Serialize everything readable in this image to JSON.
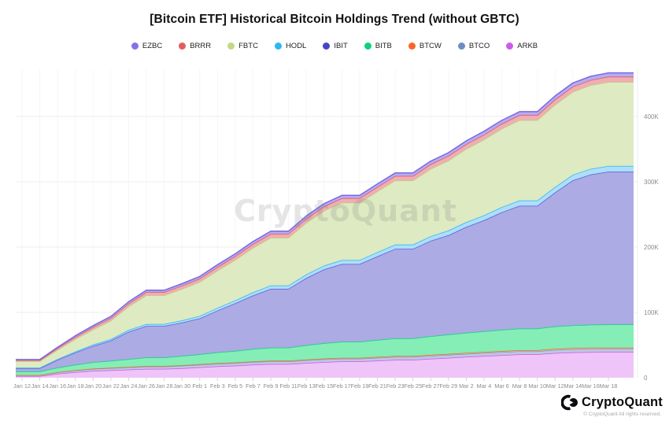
{
  "header": {
    "title": "[Bitcoin ETF] Historical Bitcoin Holdings Trend (without GBTC)"
  },
  "watermark": "CryptoQuant",
  "footer": {
    "brand": "CryptoQuant",
    "copyright": "© CryptoQuant All rights reserved.",
    "logo_icon": "cryptoquant-pacman-logo",
    "logo_color": "#0c0c10"
  },
  "chart_data": {
    "type": "area",
    "stacked": true,
    "title": "[Bitcoin ETF] Historical Bitcoin Holdings Trend (without GBTC)",
    "yunit": "BTC (thousands)",
    "ylim": [
      0,
      470
    ],
    "grid": "horizontal",
    "legend_position": "top",
    "yaxis_side": "right",
    "yticks": [
      {
        "value": 0,
        "label": "0"
      },
      {
        "value": 100,
        "label": "100K"
      },
      {
        "value": 200,
        "label": "200K"
      },
      {
        "value": 300,
        "label": "300K"
      },
      {
        "value": 400,
        "label": "400K"
      }
    ],
    "x_labels": [
      "Jan 12",
      "Jan 14",
      "Jan 16",
      "Jan 18",
      "Jan 20",
      "Jan 22",
      "Jan 24",
      "Jan 26",
      "Jan 28",
      "Jan 30",
      "Feb 1",
      "Feb 3",
      "Feb 5",
      "Feb 7",
      "Feb 9",
      "Feb 11",
      "Feb 13",
      "Feb 15",
      "Feb 17",
      "Feb 19",
      "Feb 21",
      "Feb 23",
      "Feb 25",
      "Feb 27",
      "Feb 29",
      "Mar 2",
      "Mar 4",
      "Mar 6",
      "Mar 8",
      "Mar 10",
      "Mar 12",
      "Mar 14",
      "Mar 16",
      "Mar 18"
    ],
    "legend": [
      {
        "label": "EZBC",
        "color": "#8374e6"
      },
      {
        "label": "BRRR",
        "color": "#e25d60"
      },
      {
        "label": "FBTC",
        "color": "#c3d985"
      },
      {
        "label": "HODL",
        "color": "#2fb5f5"
      },
      {
        "label": "IBIT",
        "color": "#4544c8"
      },
      {
        "label": "BITB",
        "color": "#10ce7e"
      },
      {
        "label": "BTCW",
        "color": "#fa6428"
      },
      {
        "label": "BTCO",
        "color": "#6d8cc3"
      },
      {
        "label": "ARKB",
        "color": "#cb5ce8"
      }
    ],
    "stack_order_note": "series listed bottom to top of the stack; values in thousands of BTC",
    "series": [
      {
        "name": "ARKB",
        "line": "#cb5ce8",
        "fill": "#eec2f8",
        "values": [
          2.5,
          2.5,
          6.0,
          8.5,
          10.5,
          11.5,
          12.5,
          13.5,
          13.5,
          14.5,
          16.0,
          17.5,
          18.5,
          20.0,
          21.0,
          21.0,
          22.5,
          24.0,
          25.0,
          25.0,
          26.2,
          27.4,
          27.4,
          29.0,
          30.4,
          32.0,
          33.2,
          34.6,
          35.8,
          35.8,
          37.8,
          38.8,
          39.3,
          39.5
        ]
      },
      {
        "name": "BTCO",
        "line": "#8098c8",
        "fill": "#bcc6e2",
        "values": [
          1.5,
          1.5,
          2.3,
          2.8,
          3.1,
          3.3,
          3.5,
          3.7,
          3.7,
          3.8,
          3.9,
          4.0,
          4.0,
          4.1,
          4.1,
          4.1,
          4.2,
          4.3,
          4.3,
          4.3,
          4.4,
          4.5,
          4.5,
          4.6,
          4.6,
          4.6,
          4.7,
          4.7,
          4.7,
          4.7,
          4.8,
          4.8,
          4.8,
          4.8
        ]
      },
      {
        "name": "BTCW",
        "line": "#e8742f",
        "fill": "#f3c4a4",
        "values": [
          0.1,
          0.1,
          0.2,
          0.3,
          0.4,
          0.5,
          0.6,
          0.7,
          0.7,
          0.8,
          0.8,
          0.9,
          0.9,
          1.0,
          1.0,
          1.0,
          1.1,
          1.1,
          1.2,
          1.2,
          1.3,
          1.3,
          1.3,
          1.4,
          1.5,
          1.5,
          1.6,
          1.6,
          1.7,
          1.7,
          1.8,
          1.8,
          1.9,
          1.9
        ]
      },
      {
        "name": "BITB",
        "line": "#16d087",
        "fill": "#7fedb3",
        "values": [
          5.5,
          5.5,
          7.0,
          8.3,
          9.7,
          10.6,
          11.8,
          13.2,
          13.2,
          14.3,
          15.2,
          16.5,
          17.6,
          18.9,
          20.1,
          20.1,
          21.9,
          23.5,
          24.6,
          24.6,
          25.9,
          27.1,
          27.1,
          28.6,
          29.7,
          30.7,
          31.6,
          32.5,
          33.1,
          33.1,
          34.3,
          34.9,
          35.2,
          35.4
        ]
      },
      {
        "name": "IBIT",
        "line": "#5f5fd8",
        "fill": "#a9a8e2",
        "values": [
          5.0,
          5.0,
          12.0,
          18.5,
          25.0,
          31.0,
          42.0,
          48.0,
          48.0,
          51.0,
          55.0,
          64.0,
          73.0,
          82.0,
          90.0,
          90.0,
          103.0,
          113.0,
          119.0,
          119.0,
          128.0,
          137.0,
          137.0,
          146.0,
          152.0,
          162.0,
          170.0,
          180.0,
          188.0,
          188.0,
          205.0,
          222.0,
          230.0,
          234.0
        ]
      },
      {
        "name": "HODL",
        "line": "#2fb5f5",
        "fill": "#aadefa",
        "values": [
          0.7,
          0.7,
          1.2,
          1.6,
          2.0,
          2.3,
          2.7,
          3.1,
          3.1,
          3.4,
          3.7,
          4.1,
          4.4,
          4.8,
          5.1,
          5.1,
          5.5,
          5.8,
          6.0,
          6.0,
          6.4,
          6.6,
          6.6,
          7.0,
          7.2,
          7.4,
          7.6,
          7.8,
          8.0,
          8.0,
          8.3,
          8.4,
          8.5,
          8.6
        ]
      },
      {
        "name": "FBTC",
        "line": "#bcd37e",
        "fill": "#dde9c0",
        "values": [
          10.0,
          10.0,
          14.0,
          19.0,
          23.0,
          28.0,
          36.0,
          44.0,
          44.0,
          48.0,
          52.0,
          57.0,
          62.0,
          68.0,
          73.0,
          73.0,
          79.0,
          84.0,
          88.0,
          88.0,
          93.0,
          98.0,
          98.0,
          103.0,
          107.0,
          112.0,
          116.0,
          120.0,
          123.0,
          123.0,
          126.0,
          127.0,
          128.0,
          128.5
        ]
      },
      {
        "name": "BRRR",
        "line": "#df585c",
        "fill": "#efabb0",
        "values": [
          1.5,
          1.5,
          2.5,
          3.2,
          3.7,
          4.1,
          4.5,
          4.8,
          4.8,
          5.0,
          5.2,
          5.5,
          5.7,
          5.9,
          6.1,
          6.1,
          6.4,
          6.6,
          6.7,
          6.7,
          6.9,
          7.0,
          7.0,
          7.2,
          7.3,
          7.4,
          7.5,
          7.6,
          7.7,
          7.7,
          7.9,
          8.0,
          8.1,
          8.2
        ]
      },
      {
        "name": "EZBC",
        "line": "#7a69e2",
        "fill": "#b4a9f0",
        "values": [
          1.0,
          1.0,
          1.6,
          2.0,
          2.3,
          2.5,
          2.8,
          3.0,
          3.0,
          3.2,
          3.3,
          3.5,
          3.6,
          3.8,
          3.9,
          3.9,
          4.1,
          4.2,
          4.3,
          4.3,
          4.5,
          4.6,
          4.6,
          4.8,
          4.9,
          5.0,
          5.1,
          5.2,
          5.3,
          5.3,
          5.5,
          5.6,
          5.7,
          5.8
        ]
      }
    ]
  }
}
